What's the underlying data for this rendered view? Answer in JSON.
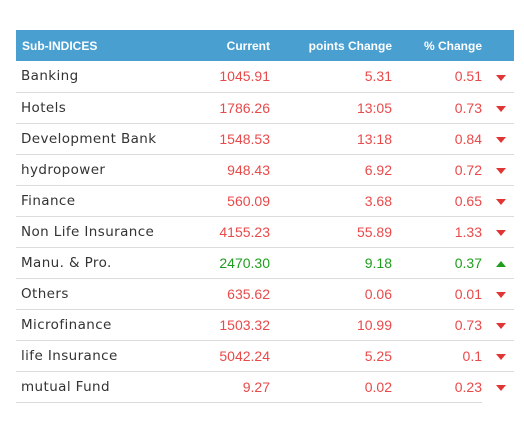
{
  "table": {
    "headers": {
      "name": "Sub-INDICES",
      "current": "Current",
      "points_change": "points Change",
      "percent_change": "% Change"
    },
    "rows": [
      {
        "name": "Banking",
        "current": "1045.91",
        "points": "5.31",
        "percent": "0.51",
        "direction": "down"
      },
      {
        "name": "Hotels",
        "current": "1786.26",
        "points": "13:05",
        "percent": "0.73",
        "direction": "down"
      },
      {
        "name": "Development Bank",
        "current": "1548.53",
        "points": "13:18",
        "percent": "0.84",
        "direction": "down"
      },
      {
        "name": "hydropower",
        "current": "948.43",
        "points": "6.92",
        "percent": "0.72",
        "direction": "down"
      },
      {
        "name": "Finance",
        "current": "560.09",
        "points": "3.68",
        "percent": "0.65",
        "direction": "down"
      },
      {
        "name": "Non Life Insurance",
        "current": "4155.23",
        "points": "55.89",
        "percent": "1.33",
        "direction": "down"
      },
      {
        "name": "Manu. & Pro.",
        "current": "2470.30",
        "points": "9.18",
        "percent": "0.37",
        "direction": "up"
      },
      {
        "name": "Others",
        "current": "635.62",
        "points": "0.06",
        "percent": "0.01",
        "direction": "down"
      },
      {
        "name": "Microfinance",
        "current": "1503.32",
        "points": "10.99",
        "percent": "0.73",
        "direction": "down"
      },
      {
        "name": "life Insurance",
        "current": "5042.24",
        "points": "5.25",
        "percent": "0.1",
        "direction": "down"
      },
      {
        "name": "mutual Fund",
        "current": "9.27",
        "points": "0.02",
        "percent": "0.23",
        "direction": "down"
      }
    ]
  },
  "colors": {
    "header_bg": "#4a9fd1",
    "down": "#e84a4a",
    "up": "#1e9e1e"
  },
  "icons": {
    "down": "caret-down-icon",
    "up": "caret-up-icon"
  }
}
